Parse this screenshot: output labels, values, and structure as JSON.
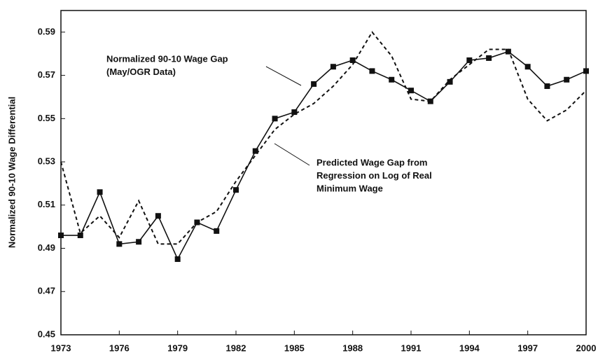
{
  "chart_data": {
    "type": "line",
    "y_label": "Normalized 90-10 Wage Differential",
    "x": [
      1973,
      1974,
      1975,
      1976,
      1977,
      1978,
      1979,
      1980,
      1981,
      1982,
      1983,
      1984,
      1985,
      1986,
      1987,
      1988,
      1989,
      1990,
      1991,
      1992,
      1993,
      1994,
      1995,
      1996,
      1997,
      1998,
      1999,
      2000
    ],
    "xlim": [
      1973,
      2000
    ],
    "xticks": [
      1973,
      1976,
      1979,
      1982,
      1985,
      1988,
      1991,
      1994,
      1997,
      2000
    ],
    "ylim": [
      0.45,
      0.6
    ],
    "yticks": [
      0.45,
      0.47,
      0.49,
      0.51,
      0.53,
      0.55,
      0.57,
      0.59
    ],
    "series": [
      {
        "label": [
          "Normalized 90-10 Wage Gap",
          "(May/OGR Data)"
        ],
        "color": "#111111",
        "dash": "solid",
        "marker": "square",
        "values": [
          0.496,
          0.496,
          0.516,
          0.492,
          0.493,
          0.505,
          0.485,
          0.502,
          0.498,
          0.517,
          0.535,
          0.55,
          0.553,
          0.566,
          0.574,
          0.577,
          0.572,
          0.568,
          0.563,
          0.558,
          0.567,
          0.577,
          0.578,
          0.581,
          0.574,
          0.565,
          0.568,
          0.572
        ]
      },
      {
        "label": [
          "Predicted Wage Gap from",
          "Regression on Log of Real",
          "Minimum Wage"
        ],
        "color": "#111111",
        "dash": "dashed",
        "marker": "none",
        "values": [
          0.53,
          0.497,
          0.505,
          0.495,
          0.512,
          0.492,
          0.492,
          0.502,
          0.507,
          0.521,
          0.533,
          0.545,
          0.552,
          0.557,
          0.565,
          0.575,
          0.59,
          0.579,
          0.559,
          0.558,
          0.568,
          0.575,
          0.582,
          0.582,
          0.559,
          0.549,
          0.554,
          0.563
        ]
      }
    ]
  }
}
